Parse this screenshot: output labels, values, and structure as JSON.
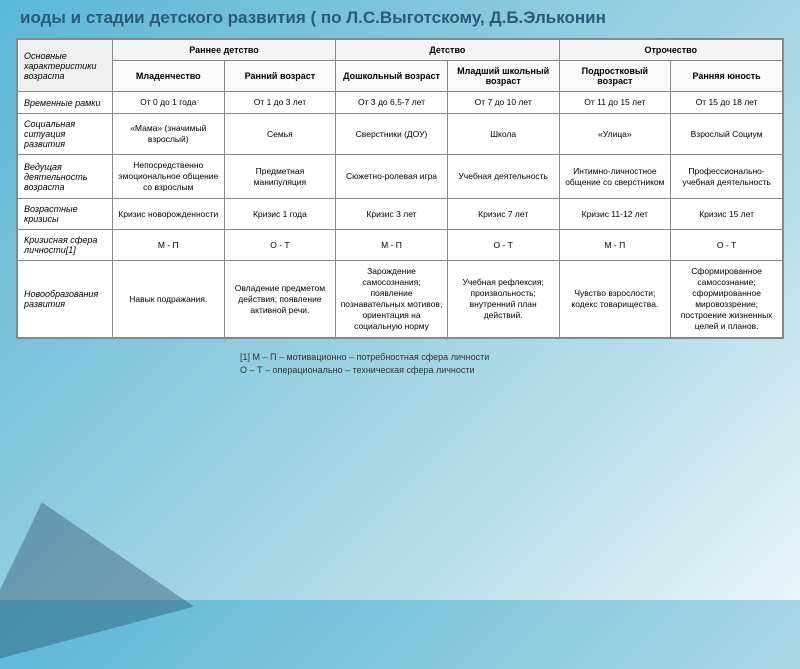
{
  "title": "иоды и стадии детского развития ( по Л.С.Выготскому, Д.Б.Эльконин",
  "headers": {
    "main_characteristic": "Основные характеристики возраста",
    "groups": [
      "Раннее детство",
      "Детство",
      "Отрочество"
    ],
    "periods": [
      "Младенчество",
      "Ранний возраст",
      "Дошкольный возраст",
      "Младший школьный возраст",
      "Подростковый возраст",
      "Ранняя юность"
    ]
  },
  "rows": {
    "timeframe": {
      "label": "Временные рамки",
      "cells": [
        "От 0 до 1 года",
        "От 1 до 3 лет",
        "От 3 до 6,5-7 лет",
        "От 7 до 10 лет",
        "От 11 до 15 лет",
        "От 15 до 18 лет"
      ]
    },
    "social": {
      "label": "Социальная ситуация развития",
      "cells": [
        "«Мама» (значимый взрослый)",
        "Семья",
        "Сверстники (ДОУ)",
        "Школа",
        "«Улица»",
        "Взрослый Социум"
      ]
    },
    "activity": {
      "label": "Ведущая деятельность возраста",
      "cells": [
        "Непосредственно эмоциональное общение со взрослым",
        "Предметная манипуляция",
        "Сюжетно-ролевая игра",
        "Учебная деятельность",
        "Интимно-личностное общение со сверстником",
        "Профессионально-учебная деятельность"
      ]
    },
    "crisis": {
      "label": "Возрастные кризисы",
      "cells": [
        "Кризис новорожденности",
        "Кризис 1 года",
        "Кризис 3 лет",
        "Кризис 7 лет",
        "Кризис 11-12 лет",
        "Кризис 15 лет"
      ]
    },
    "crisis_sphere": {
      "label": "Кризисная сфера личности[1]",
      "cells": [
        "М - П",
        "О - Т",
        "М - П",
        "О - Т",
        "М - П",
        "О - Т"
      ]
    },
    "neoformation": {
      "label": "Новообразования развития",
      "cells": [
        "Навык подражания.",
        "Овладение предметом действия; появление активной речи.",
        "Зарождение самосознания; появление познавательных мотивов; ориентация на социальную норму",
        "Учебная рефлексия; произвольность; внутренний план действий.",
        "Чувство взрослости; кодекс товарищества.",
        "Сформированное самосознание; сформированное мировоззрение; построение жизненных целей и планов."
      ]
    }
  },
  "footnote": {
    "line1": "[1] М – П – мотивационно – потребностная сфера личности",
    "line2": "О – Т – операционально – техническая сфера личности"
  }
}
